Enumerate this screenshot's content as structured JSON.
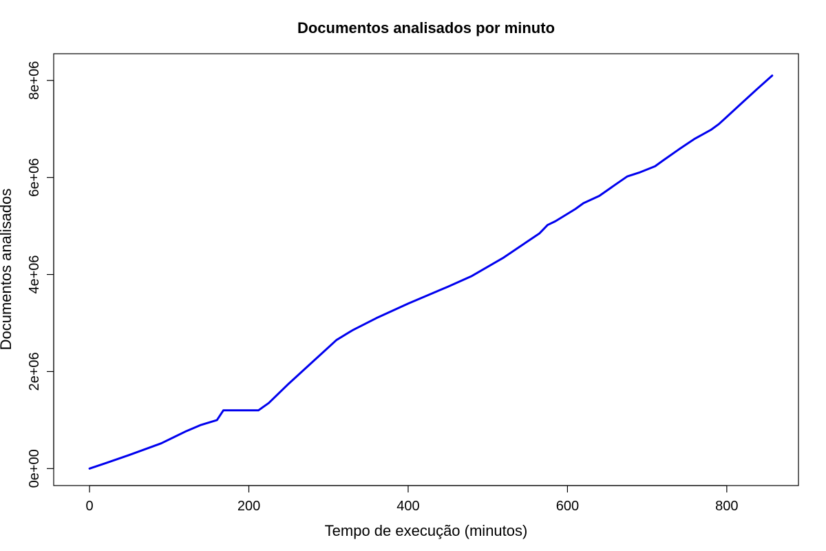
{
  "chart_data": {
    "type": "line",
    "title": "Documentos analisados por minuto",
    "xlabel": "Tempo de execução (minutos)",
    "ylabel": "Documentos analisados",
    "xlim": [
      -45,
      890
    ],
    "ylim": [
      -350000,
      8550000
    ],
    "xticks": [
      0,
      200,
      400,
      600,
      800
    ],
    "xtick_labels": [
      "0",
      "200",
      "400",
      "600",
      "800"
    ],
    "yticks": [
      0,
      2000000,
      4000000,
      6000000,
      8000000
    ],
    "ytick_labels": [
      "0e+00",
      "2e+06",
      "4e+06",
      "6e+06",
      "8e+06"
    ],
    "grid": false,
    "series": [
      {
        "color": "#0000ee",
        "x": [
          0,
          20,
          50,
          90,
          120,
          140,
          160,
          168,
          175,
          200,
          212,
          225,
          250,
          280,
          310,
          330,
          360,
          400,
          450,
          480,
          520,
          565,
          575,
          585,
          600,
          610,
          620,
          640,
          660,
          675,
          690,
          710,
          720,
          740,
          760,
          780,
          790,
          800,
          820,
          840,
          857
        ],
        "values": [
          0,
          110000,
          280000,
          520000,
          760000,
          900000,
          1000000,
          1200000,
          1200000,
          1200000,
          1200000,
          1350000,
          1750000,
          2200000,
          2650000,
          2850000,
          3100000,
          3400000,
          3750000,
          3970000,
          4350000,
          4850000,
          5020000,
          5100000,
          5250000,
          5350000,
          5470000,
          5620000,
          5850000,
          6020000,
          6100000,
          6230000,
          6350000,
          6580000,
          6800000,
          6980000,
          7100000,
          7250000,
          7550000,
          7850000,
          8100000
        ]
      }
    ]
  }
}
